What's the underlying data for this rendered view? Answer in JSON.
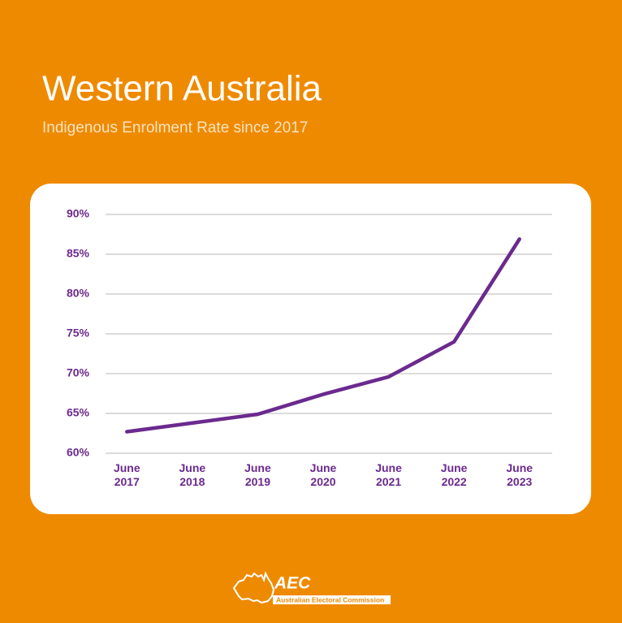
{
  "chart_data": {
    "type": "line",
    "title": "Western Australia",
    "subtitle": "Indigenous Enrolment Rate since 2017",
    "categories": [
      "June 2017",
      "June 2018",
      "June 2019",
      "June 2020",
      "June 2021",
      "June 2022",
      "June 2023"
    ],
    "series": [
      {
        "name": "Indigenous Enrolment Rate",
        "color": "#6b2a8e",
        "values": [
          62.7,
          63.8,
          64.9,
          67.4,
          69.6,
          74.0,
          86.9
        ]
      }
    ],
    "ylim": [
      60,
      90
    ],
    "yticks": [
      {
        "value": 60,
        "label": "60%"
      },
      {
        "value": 65,
        "label": "65%"
      },
      {
        "value": 70,
        "label": "70%"
      },
      {
        "value": 75,
        "label": "75%"
      },
      {
        "value": 80,
        "label": "80%"
      },
      {
        "value": 85,
        "label": "85%"
      },
      {
        "value": 90,
        "label": "90%"
      }
    ],
    "grid": true
  },
  "logo": {
    "abbreviation": "AEC",
    "name": "Australian Electoral Commission"
  }
}
